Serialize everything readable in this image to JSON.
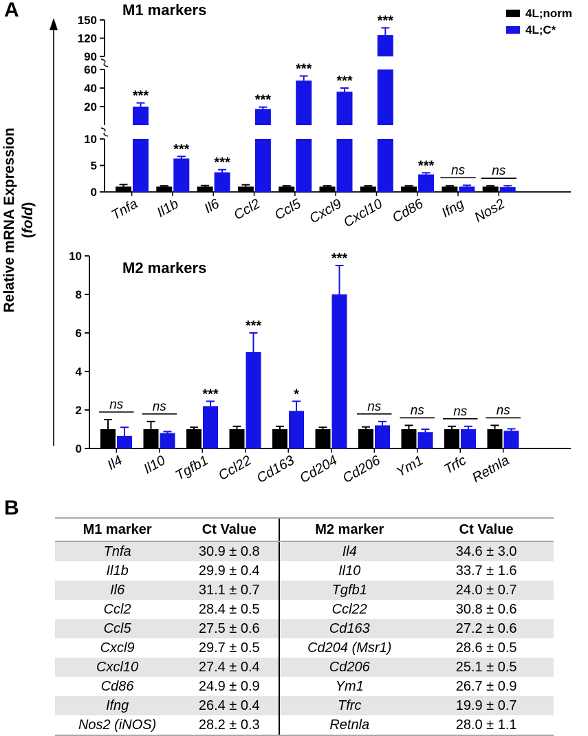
{
  "panel_a_label": "A",
  "panel_b_label": "B",
  "y_axis_label_line1": "Relative mRNA Expression",
  "y_axis_label_line2": "(fold)",
  "colors": {
    "norm": "#000000",
    "cstar": "#1414e6"
  },
  "chart_data": [
    {
      "type": "bar",
      "title": "M1 markers",
      "legend": [
        "4L;norm",
        "4L;C*"
      ],
      "legend_placement": "top-right",
      "categories": [
        "Tnfa",
        "Il1b",
        "Il6",
        "Ccl2",
        "Ccl5",
        "Cxcl9",
        "Cxcl10",
        "Cd86",
        "Ifng",
        "Nos2"
      ],
      "series": [
        {
          "name": "4L;norm",
          "values": [
            1,
            1,
            1,
            1,
            1,
            1,
            1,
            1,
            1,
            1
          ],
          "errors": [
            0.4,
            0.15,
            0.2,
            0.35,
            0.15,
            0.15,
            0.15,
            0.15,
            0.15,
            0.15
          ]
        },
        {
          "name": "4L;C*",
          "values": [
            20,
            6.3,
            3.7,
            17.5,
            48,
            36,
            125,
            3.3,
            1,
            0.9
          ],
          "errors": [
            4,
            0.4,
            0.5,
            2,
            5,
            4,
            12,
            0.3,
            0.25,
            0.25
          ]
        }
      ],
      "significance": [
        "***",
        "***",
        "***",
        "***",
        "***",
        "***",
        "***",
        "***",
        "ns",
        "ns"
      ],
      "y_axis_segments": [
        {
          "range": [
            0,
            10
          ],
          "ticks": [
            0,
            5,
            10
          ]
        },
        {
          "range": [
            0,
            60
          ],
          "ticks": [
            20,
            40,
            60
          ]
        },
        {
          "range": [
            90,
            150
          ],
          "ticks": [
            90,
            120,
            150
          ]
        }
      ]
    },
    {
      "type": "bar",
      "title": "M2 markers",
      "categories": [
        "Il4",
        "Il10",
        "Tgfb1",
        "Ccl22",
        "Cd163",
        "Cd204",
        "Cd206",
        "Ym1",
        "Trfc",
        "Retnla"
      ],
      "series": [
        {
          "name": "4L;norm",
          "values": [
            1,
            1,
            1,
            1,
            1,
            1,
            1,
            1,
            1,
            1
          ],
          "errors": [
            0.5,
            0.4,
            0.1,
            0.15,
            0.15,
            0.1,
            0.12,
            0.2,
            0.15,
            0.2
          ]
        },
        {
          "name": "4L;C*",
          "values": [
            0.65,
            0.8,
            2.2,
            5,
            1.95,
            8,
            1.2,
            0.85,
            1,
            0.92
          ],
          "errors": [
            0.45,
            0.08,
            0.25,
            1,
            0.5,
            1.5,
            0.2,
            0.15,
            0.15,
            0.1
          ]
        }
      ],
      "significance": [
        "ns",
        "ns",
        "***",
        "***",
        "*",
        "***",
        "ns",
        "ns",
        "ns",
        "ns"
      ],
      "ylim": [
        0,
        10
      ],
      "yticks": [
        0,
        2,
        4,
        6,
        8,
        10
      ]
    },
    {
      "type": "table",
      "columns": [
        "M1 marker",
        "Ct Value",
        "M2 marker",
        "Ct Value"
      ],
      "rows": [
        [
          "Tnfa",
          "30.9 ± 0.8",
          "Il4",
          "34.6 ± 3.0"
        ],
        [
          "Il1b",
          "29.9 ± 0.4",
          "Il10",
          "33.7 ± 1.6"
        ],
        [
          "Il6",
          "31.1 ± 0.7",
          "Tgfb1",
          "24.0 ± 0.7"
        ],
        [
          "Ccl2",
          "28.4 ± 0.5",
          "Ccl22",
          "30.8 ± 0.6"
        ],
        [
          "Ccl5",
          "27.5 ± 0.6",
          "Cd163",
          "27.2 ± 0.6"
        ],
        [
          "Cxcl9",
          "29.7 ± 0.5",
          "Cd204 (Msr1)",
          "28.6 ± 0.5"
        ],
        [
          "Cxcl10",
          "27.4 ± 0.4",
          "Cd206",
          "25.1 ± 0.5"
        ],
        [
          "Cd86",
          "24.9 ± 0.9",
          "Ym1",
          "26.7 ± 0.9"
        ],
        [
          "Ifng",
          "26.4 ± 0.4",
          "Tfrc",
          "19.9 ± 0.7"
        ],
        [
          "Nos2 (iNOS)",
          "28.2 ± 0.3",
          "Retnla",
          "28.0 ± 1.1"
        ]
      ]
    }
  ]
}
